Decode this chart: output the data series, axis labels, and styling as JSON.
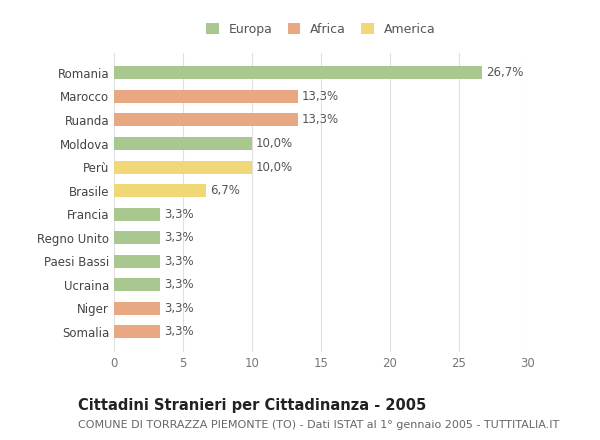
{
  "categories": [
    "Romania",
    "Marocco",
    "Ruanda",
    "Moldova",
    "Perù",
    "Brasile",
    "Francia",
    "Regno Unito",
    "Paesi Bassi",
    "Ucraina",
    "Niger",
    "Somalia"
  ],
  "values": [
    26.7,
    13.3,
    13.3,
    10.0,
    10.0,
    6.7,
    3.3,
    3.3,
    3.3,
    3.3,
    3.3,
    3.3
  ],
  "labels": [
    "26,7%",
    "13,3%",
    "13,3%",
    "10,0%",
    "10,0%",
    "6,7%",
    "3,3%",
    "3,3%",
    "3,3%",
    "3,3%",
    "3,3%",
    "3,3%"
  ],
  "colors": [
    "#a8c890",
    "#e8a882",
    "#e8a882",
    "#a8c890",
    "#f0d878",
    "#f0d878",
    "#a8c890",
    "#a8c890",
    "#a8c890",
    "#a8c890",
    "#e8a882",
    "#e8a882"
  ],
  "legend_labels": [
    "Europa",
    "Africa",
    "America"
  ],
  "legend_colors": [
    "#a8c890",
    "#e8a882",
    "#f0d878"
  ],
  "xlim": [
    0,
    30
  ],
  "xticks": [
    0,
    5,
    10,
    15,
    20,
    25,
    30
  ],
  "title": "Cittadini Stranieri per Cittadinanza - 2005",
  "subtitle": "COMUNE DI TORRAZZA PIEMONTE (TO) - Dati ISTAT al 1° gennaio 2005 - TUTTITALIA.IT",
  "bg_color": "#ffffff",
  "grid_color": "#e0e0e0",
  "bar_height": 0.55,
  "label_fontsize": 8.5,
  "ytick_fontsize": 8.5,
  "xtick_fontsize": 8.5,
  "title_fontsize": 10.5,
  "subtitle_fontsize": 8.0,
  "legend_fontsize": 9.0
}
